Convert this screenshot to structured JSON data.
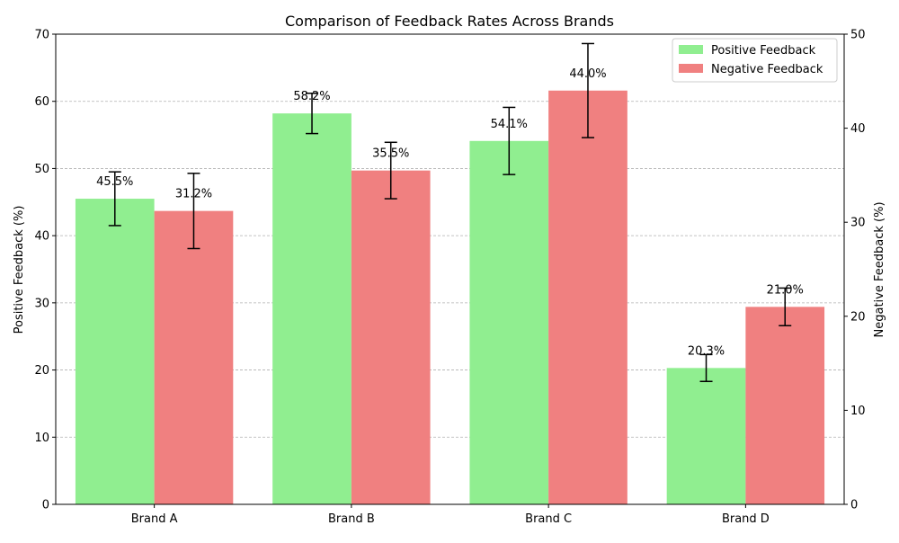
{
  "chart_data": {
    "type": "bar",
    "title": "Comparison of Feedback Rates Across Brands",
    "categories": [
      "Brand A",
      "Brand B",
      "Brand C",
      "Brand D"
    ],
    "ylabel_left": "Positive Feedback (%)",
    "ylabel_right": "Negative Feedback (%)",
    "ylim_left": [
      0,
      70
    ],
    "ylim_right": [
      0,
      50
    ],
    "yticks_left": [
      0,
      10,
      20,
      30,
      40,
      50,
      60,
      70
    ],
    "yticks_right": [
      0,
      10,
      20,
      30,
      40,
      50
    ],
    "grid": true,
    "legend_position": "top-right",
    "series": [
      {
        "name": "Positive Feedback",
        "axis": "left",
        "color": "#90ee90",
        "values": [
          45.5,
          58.2,
          54.1,
          20.3
        ],
        "errors": [
          4.0,
          3.0,
          5.0,
          2.0
        ],
        "labels": [
          "45.5%",
          "58.2%",
          "54.1%",
          "20.3%"
        ]
      },
      {
        "name": "Negative Feedback",
        "axis": "right",
        "color": "#f08080",
        "values": [
          31.2,
          35.5,
          44.0,
          21.0
        ],
        "errors": [
          4.0,
          3.0,
          5.0,
          2.0
        ],
        "labels": [
          "31.2%",
          "35.5%",
          "44.0%",
          "21.0%"
        ]
      }
    ]
  }
}
